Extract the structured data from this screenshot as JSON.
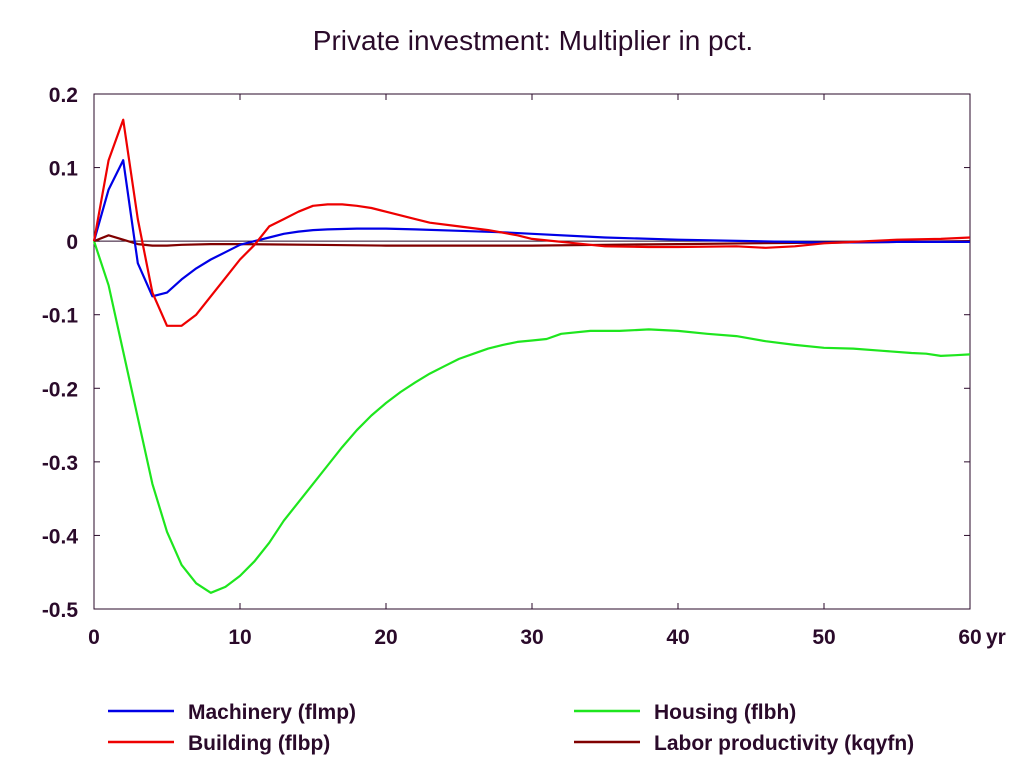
{
  "chart_data": {
    "type": "line",
    "title": "Private investment: Multiplier in pct.",
    "xlabel": "",
    "ylabel": "",
    "x_unit_label": "yr",
    "xlim": [
      0,
      60
    ],
    "ylim": [
      -0.5,
      0.2
    ],
    "x_ticks": [
      0,
      10,
      20,
      30,
      40,
      50,
      60
    ],
    "x_tick_labels": [
      "0",
      "10",
      "20",
      "30",
      "40",
      "50",
      "60"
    ],
    "y_ticks": [
      0.2,
      0.1,
      0,
      -0.1,
      -0.2,
      -0.3,
      -0.4,
      -0.5
    ],
    "y_tick_labels": [
      "0.2",
      "0.1",
      "0",
      "-0.1",
      "-0.2",
      "-0.3",
      "-0.4",
      "-0.5"
    ],
    "grid": false,
    "legend_position": "bottom",
    "series": [
      {
        "name": "Machinery (flmp)",
        "color": "#0000e6",
        "x": [
          0,
          1,
          2,
          3,
          4,
          5,
          6,
          7,
          8,
          9,
          10,
          11,
          12,
          13,
          14,
          15,
          16,
          18,
          20,
          22,
          25,
          28,
          30,
          35,
          40,
          45,
          50,
          55,
          60
        ],
        "y": [
          0,
          0.07,
          0.11,
          -0.03,
          -0.075,
          -0.07,
          -0.052,
          -0.037,
          -0.025,
          -0.015,
          -0.005,
          0.0,
          0.005,
          0.01,
          0.013,
          0.015,
          0.016,
          0.017,
          0.017,
          0.016,
          0.014,
          0.012,
          0.01,
          0.005,
          0.002,
          0.0,
          -0.002,
          -0.001,
          -0.001
        ]
      },
      {
        "name": "Building (flbp)",
        "color": "#ee0000",
        "x": [
          0,
          1,
          2,
          3,
          4,
          5,
          6,
          7,
          8,
          9,
          10,
          11,
          12,
          13,
          14,
          15,
          16,
          17,
          18,
          19,
          20,
          22,
          23,
          25,
          27,
          29,
          30,
          33,
          35,
          38,
          40,
          44,
          46,
          48,
          50,
          52,
          55,
          58,
          60
        ],
        "y": [
          0,
          0.11,
          0.165,
          0.03,
          -0.07,
          -0.115,
          -0.115,
          -0.1,
          -0.075,
          -0.05,
          -0.025,
          -0.005,
          0.02,
          0.03,
          0.04,
          0.048,
          0.05,
          0.05,
          0.048,
          0.045,
          0.04,
          0.03,
          0.025,
          0.02,
          0.015,
          0.008,
          0.003,
          -0.003,
          -0.007,
          -0.008,
          -0.008,
          -0.007,
          -0.009,
          -0.007,
          -0.003,
          -0.001,
          0.002,
          0.003,
          0.005
        ]
      },
      {
        "name": "Housing (flbh)",
        "color": "#1ee61e",
        "x": [
          0,
          1,
          2,
          3,
          4,
          5,
          6,
          7,
          8,
          9,
          10,
          11,
          12,
          13,
          14,
          15,
          16,
          17,
          18,
          19,
          20,
          21,
          22,
          23,
          24,
          25,
          26,
          27,
          28,
          29,
          30,
          31,
          32,
          34,
          36,
          38,
          40,
          42,
          44,
          46,
          48,
          50,
          52,
          54,
          56,
          57,
          58,
          59,
          60
        ],
        "y": [
          0,
          -0.06,
          -0.15,
          -0.24,
          -0.33,
          -0.395,
          -0.44,
          -0.465,
          -0.478,
          -0.47,
          -0.455,
          -0.435,
          -0.41,
          -0.38,
          -0.355,
          -0.33,
          -0.305,
          -0.28,
          -0.257,
          -0.237,
          -0.22,
          -0.205,
          -0.192,
          -0.18,
          -0.17,
          -0.16,
          -0.153,
          -0.146,
          -0.141,
          -0.137,
          -0.135,
          -0.133,
          -0.126,
          -0.122,
          -0.122,
          -0.12,
          -0.122,
          -0.126,
          -0.129,
          -0.136,
          -0.141,
          -0.145,
          -0.146,
          -0.149,
          -0.152,
          -0.153,
          -0.156,
          -0.155,
          -0.154
        ]
      },
      {
        "name": "Labor productivity (kqyfn)",
        "color": "#800000",
        "x": [
          0,
          1,
          2,
          3,
          4,
          5,
          6,
          8,
          10,
          15,
          20,
          25,
          30,
          35,
          40,
          45,
          50,
          55,
          60
        ],
        "y": [
          0,
          0.008,
          0.002,
          -0.004,
          -0.006,
          -0.006,
          -0.005,
          -0.004,
          -0.004,
          -0.005,
          -0.006,
          -0.006,
          -0.006,
          -0.005,
          -0.004,
          -0.003,
          -0.002,
          -0.001,
          0.0
        ]
      }
    ]
  }
}
